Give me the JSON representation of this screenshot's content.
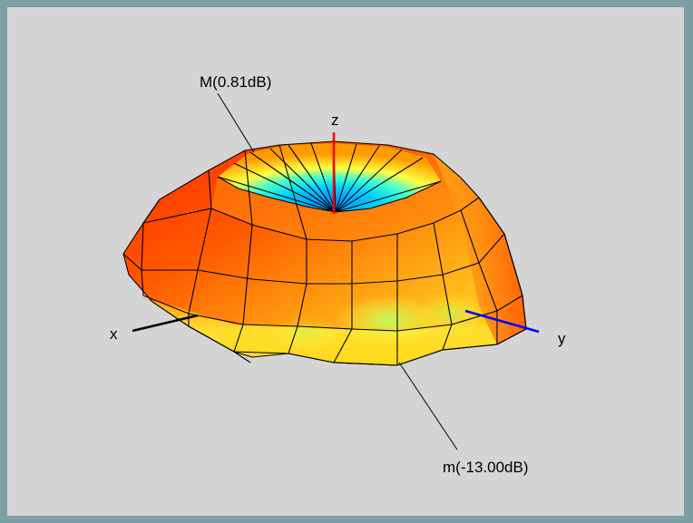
{
  "labels": {
    "max_annotation": "M(0.81dB)",
    "min_annotation": "m(-13.00dB)",
    "axis_x": "x",
    "axis_y": "y",
    "axis_z": "z"
  },
  "colors": {
    "background": "#d4d4d4",
    "frame": "#7f9ea4",
    "axis_x": "#000000",
    "axis_y": "#0000ff",
    "axis_z": "#ff0000",
    "colormap": [
      "#00a0ff",
      "#00ffe0",
      "#ffff00",
      "#ff9000",
      "#ff2000"
    ]
  }
}
